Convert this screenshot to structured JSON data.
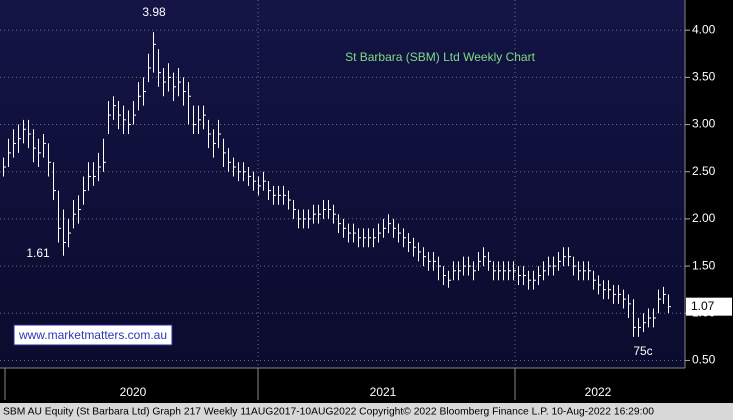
{
  "chart_data": {
    "type": "hlc",
    "title": "St Barbara (SBM) Ltd Weekly Chart",
    "watermark": "www.marketmatters.com.au",
    "footer": "SBM AU Equity (St Barbara Ltd) Graph 217  Weekly 11AUG2017-10AUG2022 Copyright© 2022 Bloomberg Finance L.P.   10-Aug-2022 16:29:00",
    "annotations": [
      "3.98",
      "1.61",
      "75c"
    ],
    "last_value": 1.07,
    "categories": [
      null,
      null,
      null,
      null,
      null,
      null,
      null,
      null,
      null,
      null,
      null,
      null,
      null,
      null,
      null,
      null,
      null,
      null,
      null,
      null,
      null,
      null,
      null,
      null,
      null,
      null,
      "2020",
      null,
      null,
      null,
      null,
      null,
      null,
      null,
      null,
      null,
      null,
      null,
      null,
      null,
      null,
      null,
      null,
      null,
      null,
      null,
      null,
      null,
      null,
      null,
      null,
      null,
      null,
      null,
      null,
      null,
      null,
      null,
      null,
      null,
      null,
      null,
      null,
      null,
      null,
      null,
      null,
      null,
      null,
      null,
      null,
      null,
      null,
      null,
      null,
      null,
      "2021",
      null,
      null,
      null,
      null,
      null,
      null,
      null,
      null,
      null,
      null,
      null,
      null,
      null,
      null,
      null,
      null,
      null,
      null,
      null,
      null,
      null,
      null,
      null,
      null,
      null,
      null,
      null,
      null,
      null,
      null,
      null,
      null,
      null,
      null,
      null,
      null,
      null,
      null,
      null,
      null,
      null,
      null,
      "2022",
      null,
      null,
      null,
      null,
      null,
      null,
      null,
      null,
      null,
      null,
      null,
      null,
      null,
      null
    ],
    "high": [
      2.65,
      2.85,
      2.95,
      3.0,
      3.05,
      3.05,
      2.95,
      2.85,
      2.9,
      2.8,
      2.6,
      2.3,
      2.1,
      2.0,
      2.2,
      2.25,
      2.45,
      2.6,
      2.6,
      2.7,
      2.85,
      3.25,
      3.3,
      3.25,
      3.2,
      3.15,
      3.25,
      3.45,
      3.5,
      3.75,
      3.98,
      3.8,
      3.6,
      3.65,
      3.55,
      3.6,
      3.5,
      3.45,
      3.2,
      3.2,
      3.2,
      3.05,
      2.95,
      3.05,
      2.85,
      2.75,
      2.65,
      2.6,
      2.6,
      2.55,
      2.5,
      2.45,
      2.5,
      2.4,
      2.35,
      2.35,
      2.35,
      2.3,
      2.2,
      2.1,
      2.1,
      2.1,
      2.15,
      2.15,
      2.2,
      2.2,
      2.15,
      2.05,
      2.0,
      1.95,
      1.95,
      1.9,
      1.9,
      1.9,
      1.9,
      1.95,
      2.0,
      2.05,
      2.0,
      1.95,
      1.9,
      1.85,
      1.8,
      1.75,
      1.7,
      1.65,
      1.65,
      1.6,
      1.5,
      1.45,
      1.55,
      1.55,
      1.6,
      1.6,
      1.55,
      1.65,
      1.7,
      1.65,
      1.55,
      1.55,
      1.55,
      1.55,
      1.55,
      1.5,
      1.5,
      1.45,
      1.45,
      1.5,
      1.55,
      1.6,
      1.6,
      1.65,
      1.7,
      1.7,
      1.6,
      1.55,
      1.55,
      1.55,
      1.45,
      1.4,
      1.35,
      1.35,
      1.3,
      1.3,
      1.25,
      1.2,
      1.15,
      0.95,
      1.0,
      1.05,
      1.05,
      1.25,
      1.28,
      1.2
    ],
    "low": [
      2.45,
      2.55,
      2.65,
      2.7,
      2.8,
      2.75,
      2.6,
      2.55,
      2.65,
      2.45,
      2.2,
      1.75,
      1.61,
      1.7,
      1.9,
      1.95,
      2.15,
      2.3,
      2.35,
      2.4,
      2.5,
      2.9,
      3.05,
      2.95,
      2.9,
      2.9,
      3.0,
      3.15,
      3.2,
      3.45,
      3.55,
      3.4,
      3.3,
      3.35,
      3.25,
      3.3,
      3.2,
      3.0,
      2.9,
      2.9,
      2.95,
      2.75,
      2.65,
      2.75,
      2.55,
      2.5,
      2.45,
      2.4,
      2.4,
      2.35,
      2.3,
      2.25,
      2.3,
      2.2,
      2.15,
      2.15,
      2.15,
      2.1,
      2.0,
      1.9,
      1.9,
      1.9,
      1.95,
      1.95,
      2.0,
      2.0,
      1.95,
      1.85,
      1.8,
      1.75,
      1.75,
      1.7,
      1.7,
      1.7,
      1.7,
      1.75,
      1.8,
      1.85,
      1.8,
      1.75,
      1.7,
      1.65,
      1.6,
      1.55,
      1.5,
      1.45,
      1.45,
      1.35,
      1.3,
      1.27,
      1.35,
      1.35,
      1.4,
      1.4,
      1.35,
      1.45,
      1.5,
      1.45,
      1.35,
      1.35,
      1.35,
      1.35,
      1.35,
      1.3,
      1.3,
      1.25,
      1.25,
      1.3,
      1.35,
      1.4,
      1.4,
      1.45,
      1.5,
      1.5,
      1.4,
      1.35,
      1.35,
      1.35,
      1.25,
      1.2,
      1.15,
      1.15,
      1.1,
      1.1,
      1.05,
      0.95,
      0.75,
      0.75,
      0.8,
      0.85,
      0.85,
      1.0,
      1.1,
      1.0
    ],
    "close": [
      2.55,
      2.7,
      2.8,
      2.85,
      2.95,
      2.9,
      2.75,
      2.7,
      2.8,
      2.6,
      2.3,
      1.9,
      1.75,
      1.85,
      2.05,
      2.1,
      2.3,
      2.45,
      2.45,
      2.55,
      2.6,
      3.1,
      3.2,
      3.1,
      3.05,
      3.0,
      3.1,
      3.3,
      3.35,
      3.6,
      3.85,
      3.55,
      3.45,
      3.5,
      3.4,
      3.45,
      3.35,
      3.3,
      3.0,
      3.05,
      3.1,
      2.9,
      2.8,
      2.9,
      2.7,
      2.6,
      2.55,
      2.5,
      2.5,
      2.45,
      2.4,
      2.35,
      2.4,
      2.3,
      2.25,
      2.25,
      2.25,
      2.2,
      2.1,
      2.0,
      2.0,
      2.0,
      2.05,
      2.05,
      2.1,
      2.1,
      2.05,
      1.95,
      1.9,
      1.85,
      1.85,
      1.8,
      1.8,
      1.8,
      1.8,
      1.85,
      1.9,
      1.95,
      1.9,
      1.85,
      1.8,
      1.75,
      1.7,
      1.65,
      1.6,
      1.55,
      1.55,
      1.5,
      1.4,
      1.35,
      1.45,
      1.45,
      1.5,
      1.5,
      1.45,
      1.55,
      1.6,
      1.55,
      1.45,
      1.45,
      1.45,
      1.45,
      1.45,
      1.4,
      1.4,
      1.35,
      1.35,
      1.4,
      1.45,
      1.5,
      1.5,
      1.55,
      1.6,
      1.6,
      1.5,
      1.45,
      1.45,
      1.45,
      1.35,
      1.3,
      1.25,
      1.25,
      1.2,
      1.2,
      1.15,
      1.1,
      0.85,
      0.85,
      0.9,
      0.95,
      0.95,
      1.15,
      1.2,
      1.07
    ],
    "color": "#ffffff",
    "ylim": [
      0.42,
      4.32
    ],
    "yticks": [
      {
        "value": 0.5,
        "label": "0.50"
      },
      {
        "value": 1.0,
        "label": "1.00"
      },
      {
        "value": 1.5,
        "label": "1.50"
      },
      {
        "value": 2.0,
        "label": "2.00"
      },
      {
        "value": 2.5,
        "label": "2.50"
      },
      {
        "value": 3.0,
        "label": "3.00"
      },
      {
        "value": 3.5,
        "label": "3.50"
      },
      {
        "value": 4.0,
        "label": "4.00"
      }
    ],
    "grid": true
  }
}
